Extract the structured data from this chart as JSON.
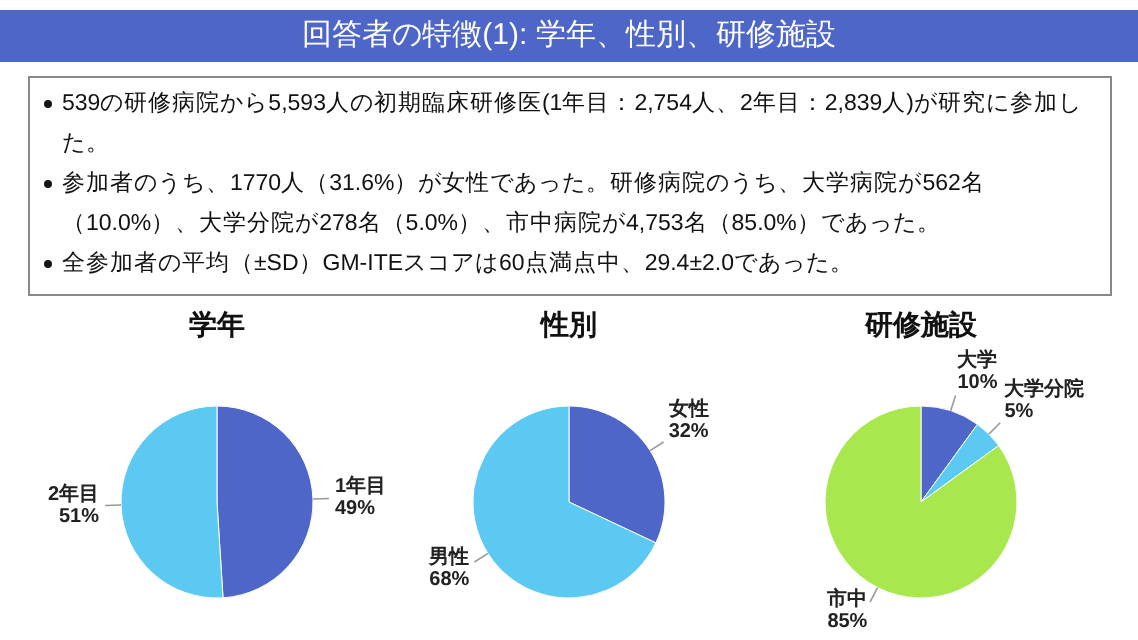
{
  "chart_data": [
    {
      "type": "other",
      "title": "回答者の特徴(1): 学年、性別、研修施設",
      "annotations": [
        "539の研修病院から5,593人の初期臨床研修医(1年目：2,754人、2年目：2,839人)が研究に参加した。",
        "参加者のうち、1770人（31.6%）が女性であった。研修病院のうち、大学病院が562名（10.0%）、大学分院が278名（5.0%）、市中病院が4,753名（85.0%）であった。",
        "全参加者の平均（±SD）GM-ITEスコアは60点満点中、29.4±2.0であった。"
      ]
    },
    {
      "type": "pie",
      "title": "学年",
      "categories": [
        "1年目",
        "2年目"
      ],
      "values": [
        49,
        51
      ],
      "colors": [
        "#4f66c9",
        "#5bc9f2"
      ],
      "value_labels": [
        "49%",
        "51%"
      ]
    },
    {
      "type": "pie",
      "title": "性別",
      "categories": [
        "女性",
        "男性"
      ],
      "values": [
        32,
        68
      ],
      "colors": [
        "#4f66c9",
        "#5bc9f2"
      ],
      "value_labels": [
        "32%",
        "68%"
      ]
    },
    {
      "type": "pie",
      "title": "研修施設",
      "categories": [
        "大学",
        "大学分院",
        "市中"
      ],
      "values": [
        10,
        5,
        85
      ],
      "colors": [
        "#4f66c9",
        "#5bc9f2",
        "#a8e84e"
      ],
      "value_labels": [
        "10%",
        "5%",
        "85%"
      ]
    }
  ]
}
